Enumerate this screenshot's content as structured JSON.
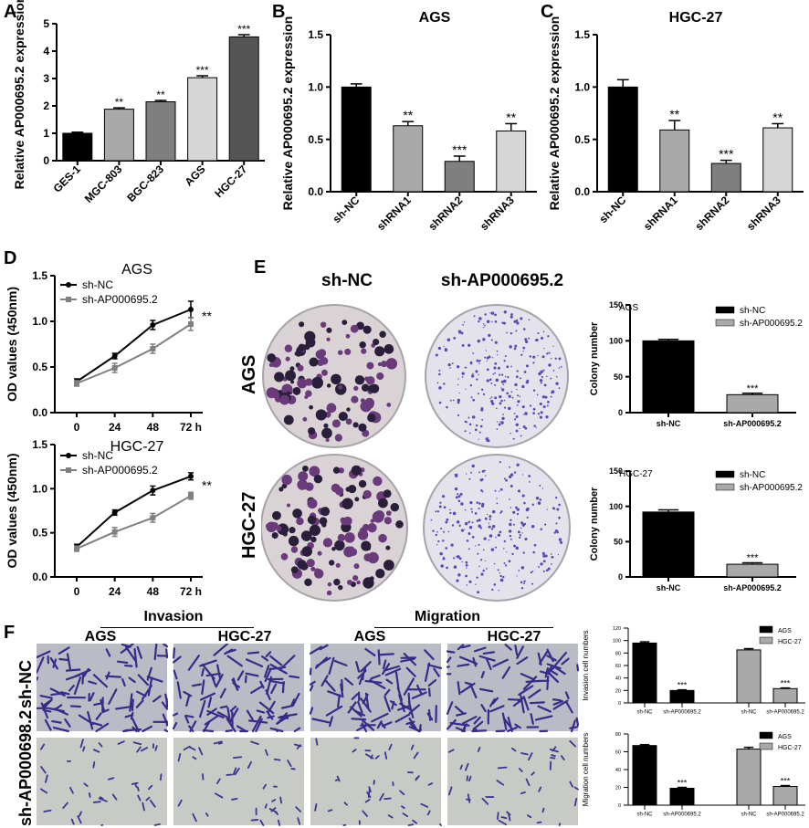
{
  "panels": {
    "A": {
      "letter": "A",
      "chart_data": {
        "type": "bar",
        "title": "",
        "ylabel": "Relative AP000695.2 expression",
        "xlabel": "",
        "ylim": [
          0,
          5
        ],
        "yticks": [
          "0",
          "1",
          "2",
          "3",
          "4",
          "5"
        ],
        "categories": [
          "GES-1",
          "MGC-803",
          "BGC-823",
          "AGS",
          "HGC-27"
        ],
        "values": [
          1.0,
          1.88,
          2.15,
          3.03,
          4.52
        ],
        "errors": [
          0.04,
          0.05,
          0.05,
          0.07,
          0.08
        ],
        "significance": [
          "",
          "**",
          "**",
          "***",
          "***"
        ],
        "colors": [
          "#000000",
          "#a9a9a9",
          "#7f7f7f",
          "#d6d6d6",
          "#555555"
        ]
      }
    },
    "B": {
      "letter": "B",
      "chart_data": {
        "type": "bar",
        "title": "AGS",
        "ylabel": "Relative AP000695.2 expression",
        "xlabel": "",
        "ylim": [
          0,
          1.5
        ],
        "yticks": [
          "0.0",
          "0.5",
          "1.0",
          "1.5"
        ],
        "categories": [
          "sh-NC",
          "shRNA1",
          "shRNA2",
          "shRNA3"
        ],
        "values": [
          1.0,
          0.63,
          0.29,
          0.58
        ],
        "errors": [
          0.03,
          0.04,
          0.05,
          0.07
        ],
        "significance": [
          "",
          "**",
          "***",
          "**"
        ],
        "colors": [
          "#000000",
          "#a9a9a9",
          "#7f7f7f",
          "#d6d6d6"
        ]
      }
    },
    "C": {
      "letter": "C",
      "chart_data": {
        "type": "bar",
        "title": "HGC-27",
        "ylabel": "Relative AP000695.2 expression",
        "xlabel": "",
        "ylim": [
          0,
          1.5
        ],
        "yticks": [
          "0.0",
          "0.5",
          "1.0",
          "1.5"
        ],
        "categories": [
          "sh-NC",
          "shRNA1",
          "shRNA2",
          "shRNA3"
        ],
        "values": [
          1.0,
          0.59,
          0.27,
          0.61
        ],
        "errors": [
          0.07,
          0.09,
          0.03,
          0.04
        ],
        "significance": [
          "",
          "**",
          "***",
          "**"
        ],
        "colors": [
          "#000000",
          "#a9a9a9",
          "#7f7f7f",
          "#d6d6d6"
        ]
      }
    },
    "D": {
      "letter": "D",
      "charts": [
        {
          "type": "line",
          "title": "AGS",
          "ylabel": "OD values (450nm)",
          "ylim": [
            0,
            1.5
          ],
          "yticks": [
            "0.0",
            "0.5",
            "1.0",
            "1.5"
          ],
          "x": [
            "0",
            "24",
            "48",
            "72 h"
          ],
          "series": [
            {
              "name": "sh-NC",
              "values": [
                0.34,
                0.62,
                0.96,
                1.13
              ],
              "errors": [
                0.03,
                0.03,
                0.05,
                0.09
              ],
              "color": "#000000"
            },
            {
              "name": "sh-AP000695.2",
              "values": [
                0.32,
                0.49,
                0.7,
                0.97
              ],
              "errors": [
                0.03,
                0.05,
                0.05,
                0.07
              ],
              "color": "#808080"
            }
          ],
          "significance": "**",
          "legend": "top-left"
        },
        {
          "type": "line",
          "title": "HGC-27",
          "ylabel": "OD values (450nm)",
          "ylim": [
            0,
            1.5
          ],
          "yticks": [
            "0.0",
            "0.5",
            "1.0",
            "1.5"
          ],
          "x": [
            "0",
            "24",
            "48",
            "72 h"
          ],
          "series": [
            {
              "name": "sh-NC",
              "values": [
                0.34,
                0.73,
                0.98,
                1.14
              ],
              "errors": [
                0.03,
                0.03,
                0.05,
                0.04
              ],
              "color": "#000000"
            },
            {
              "name": "sh-AP000695.2",
              "values": [
                0.32,
                0.51,
                0.67,
                0.92
              ],
              "errors": [
                0.03,
                0.05,
                0.05,
                0.04
              ],
              "color": "#808080"
            }
          ],
          "significance": "**",
          "legend": "top-left"
        }
      ]
    },
    "E": {
      "letter": "E",
      "col_headers": [
        "sh-NC",
        "sh-AP000695.2"
      ],
      "row_labels": [
        "AGS",
        "HGC-27"
      ],
      "charts": [
        {
          "type": "bar",
          "title": "AGS",
          "ylabel": "Colony number",
          "ylim": [
            0,
            150
          ],
          "yticks": [
            "0",
            "50",
            "100",
            "150"
          ],
          "categories": [
            "sh-NC",
            "sh-AP000695.2"
          ],
          "values": [
            100,
            25
          ],
          "errors": [
            2,
            2
          ],
          "significance": [
            "",
            "***"
          ],
          "colors": [
            "#000000",
            "#a9a9a9"
          ],
          "legend_entries": [
            "sh-NC",
            "sh-AP000695.2"
          ]
        },
        {
          "type": "bar",
          "title": "HGC-27",
          "ylabel": "Colony number",
          "ylim": [
            0,
            150
          ],
          "yticks": [
            "0",
            "50",
            "100",
            "150"
          ],
          "categories": [
            "sh-NC",
            "sh-AP000695.2"
          ],
          "values": [
            92,
            18
          ],
          "errors": [
            3,
            2
          ],
          "significance": [
            "",
            "***"
          ],
          "colors": [
            "#000000",
            "#a9a9a9"
          ],
          "legend_entries": [
            "sh-NC",
            "sh-AP000695.2"
          ]
        }
      ]
    },
    "F": {
      "letter": "F",
      "group_headers": [
        "Invasion",
        "Migration"
      ],
      "col_headers": [
        "AGS",
        "HGC-27",
        "AGS",
        "HGC-27"
      ],
      "row_labels": [
        "sh-NC",
        "sh-AP000698.2"
      ],
      "charts": [
        {
          "type": "bar",
          "ylabel": "Invasion cell numbers",
          "ylim": [
            0,
            120
          ],
          "yticks": [
            "0",
            "20",
            "40",
            "60",
            "80",
            "100",
            "120"
          ],
          "categories": [
            "sh-NC",
            "sh-AP000695.2",
            "sh-NC",
            "sh-AP000695.2"
          ],
          "values": [
            96,
            20,
            85,
            23
          ],
          "errors": [
            2,
            1,
            2,
            1
          ],
          "groups": [
            "AGS",
            "AGS",
            "HGC-27",
            "HGC-27"
          ],
          "significance": [
            "",
            "***",
            "",
            "***"
          ],
          "colors": [
            "#000000",
            "#000000",
            "#a9a9a9",
            "#a9a9a9"
          ],
          "legend_entries": [
            "AGS",
            "HGC-27"
          ]
        },
        {
          "type": "bar",
          "ylabel": "Migration cell numbers",
          "ylim": [
            0,
            80
          ],
          "yticks": [
            "0",
            "20",
            "40",
            "60",
            "80"
          ],
          "categories": [
            "sh-NC",
            "sh-AP000695.2",
            "sh-NC",
            "sh-AP000695.2"
          ],
          "values": [
            67,
            19,
            63,
            21
          ],
          "errors": [
            1,
            1,
            2,
            1
          ],
          "groups": [
            "AGS",
            "AGS",
            "HGC-27",
            "HGC-27"
          ],
          "significance": [
            "",
            "***",
            "",
            "***"
          ],
          "colors": [
            "#000000",
            "#000000",
            "#a9a9a9",
            "#a9a9a9"
          ],
          "legend_entries": [
            "AGS",
            "HGC-27"
          ]
        }
      ]
    }
  }
}
